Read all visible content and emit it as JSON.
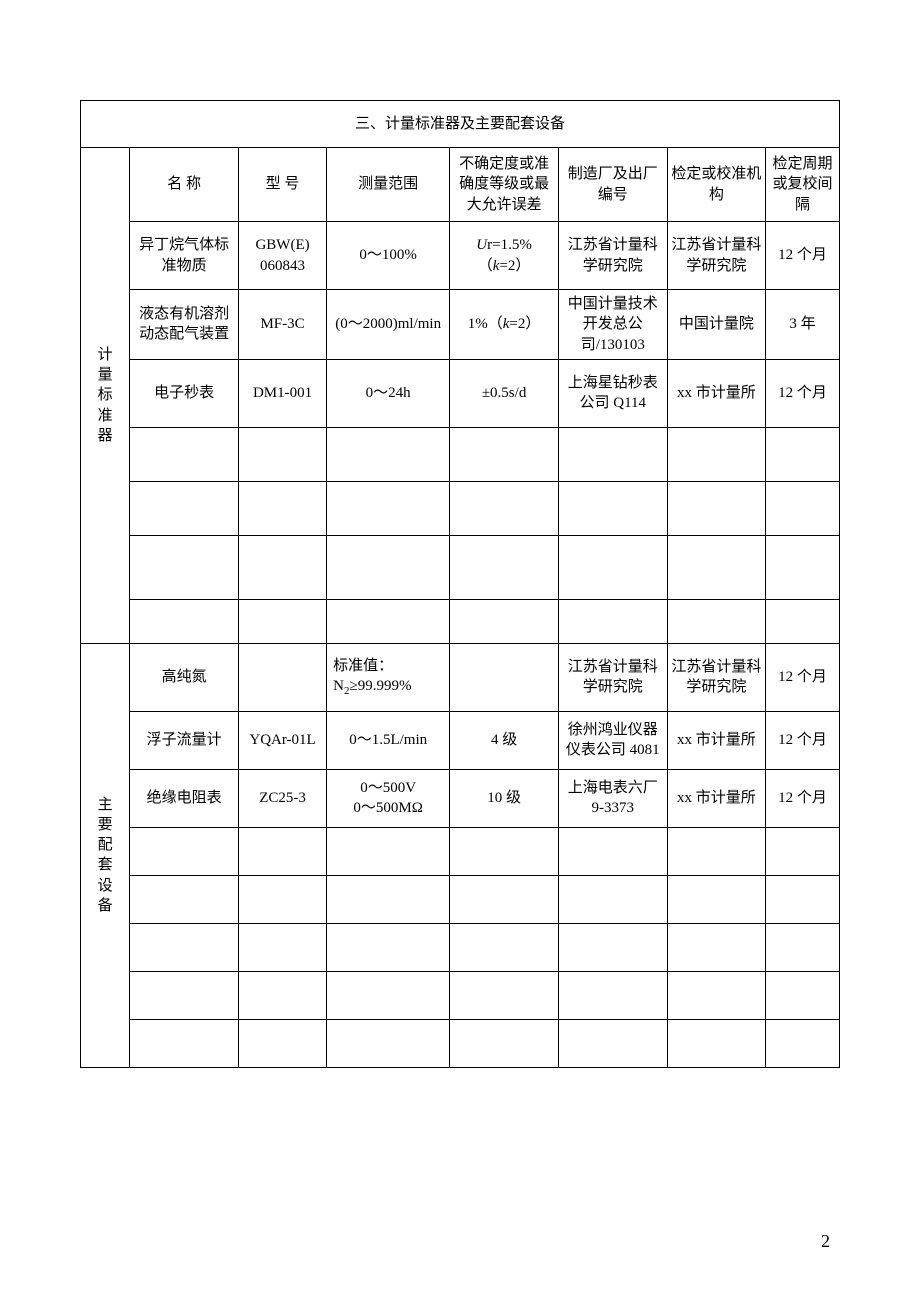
{
  "title": "三、计量标准器及主要配套设备",
  "page_number": "2",
  "headers": {
    "name": "名 称",
    "model": "型 号",
    "range": "测量范围",
    "uncertainty": "不确定度或准确度等级或最大允许误差",
    "mfr": "制造厂及出厂编号",
    "org": "检定或校准机构",
    "period": "检定周期或复校间隔"
  },
  "section1_label": "计量标准器",
  "section2_label": "主要配套设备",
  "standard_rows": [
    {
      "name": "异丁烷气体标准物质",
      "model": "GBW(E) 060843",
      "range": "0～100%",
      "uncertainty_html": "<span class='ital'>U</span>r=1.5%（<span class='ital'>k</span>=2）",
      "mfr": "江苏省计量科学研究院",
      "org": "江苏省计量科学研究院",
      "period": "12 个月"
    },
    {
      "name": "液态有机溶剂动态配气装置",
      "model": "MF-3C",
      "range": "(0～2000)ml/min",
      "uncertainty_html": "1%（<span class='ital'>k</span>=2）",
      "mfr": "中国计量技术开发总公司/130103",
      "org": "中国计量院",
      "period": "3 年"
    },
    {
      "name": "电子秒表",
      "model": "DM1-001",
      "range": "0～24h",
      "uncertainty_html": "±0.5s/d",
      "mfr": "上海星钻秒表公司 Q114",
      "org": "xx 市计量所",
      "period": "12 个月"
    }
  ],
  "aux_rows": [
    {
      "name": "高纯氮",
      "model": "",
      "range_html": "标准值：<br>N<span class='sub'>2</span>≥99.999%",
      "uncertainty_html": "",
      "mfr": "江苏省计量科学研究院",
      "org": "江苏省计量科学研究院",
      "period": "12 个月"
    },
    {
      "name": "浮子流量计",
      "model": "YQAr-01L",
      "range_html": "0～1.5L/min",
      "uncertainty_html": "4 级",
      "mfr": "徐州鸿业仪器仪表公司 4081",
      "org": "xx 市计量所",
      "period": "12 个月"
    },
    {
      "name": "绝缘电阻表",
      "model": "ZC25-3",
      "range_html": "0～500V<br>0～500MΩ",
      "uncertainty_html": "10 级",
      "mfr": "上海电表六厂 9-3373",
      "org": "xx 市计量所",
      "period": "12 个月"
    }
  ],
  "row_heights": {
    "header": 74,
    "data": 68,
    "sec1_empty4": 54,
    "sec1_empty5": 54,
    "sec1_empty6": 64,
    "sec1_empty7": 44,
    "aux_data": 58,
    "aux_empty": 48
  }
}
